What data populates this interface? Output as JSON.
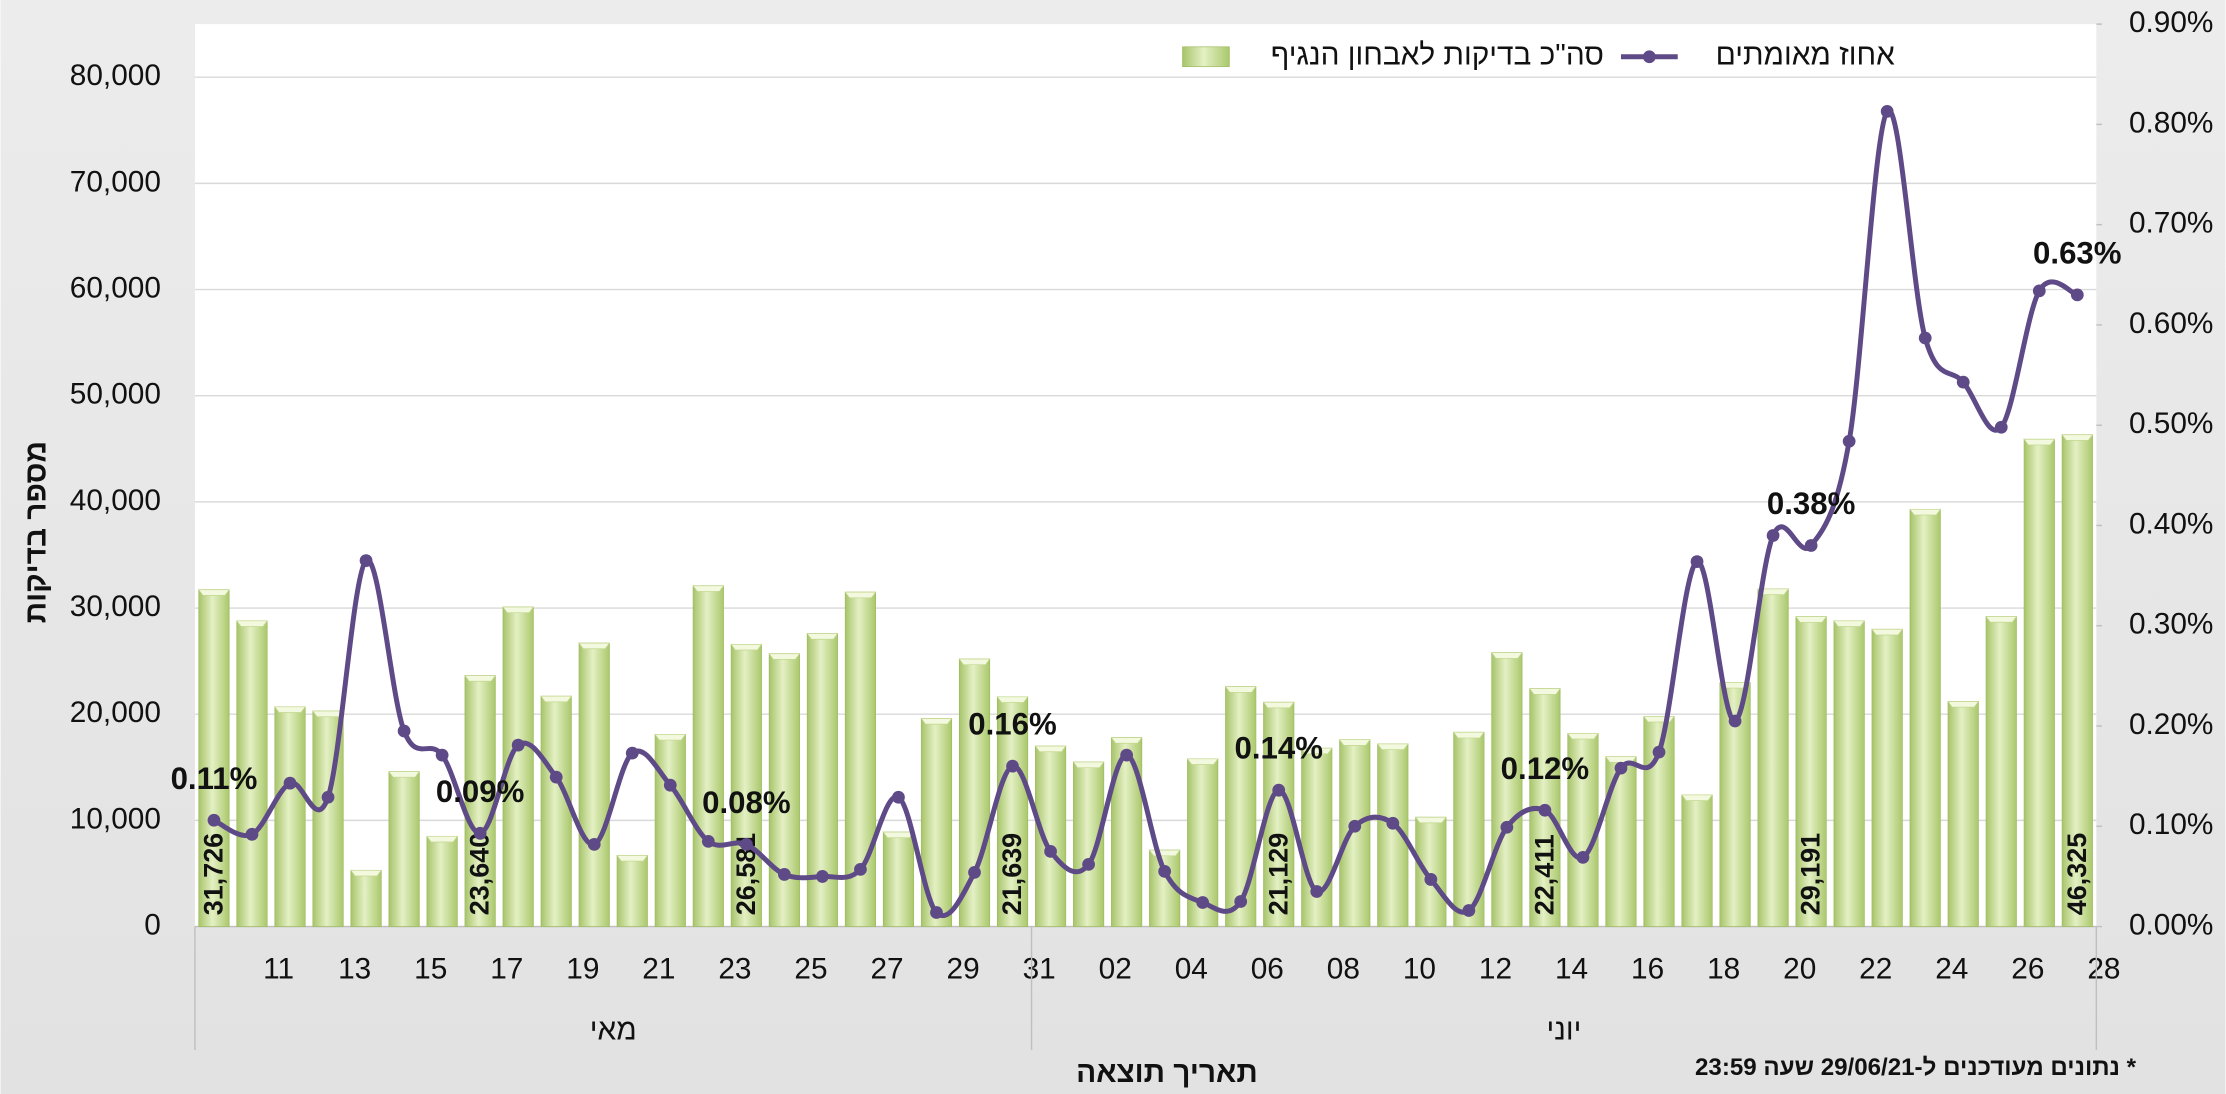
{
  "chart_data": {
    "type": "bar_line",
    "x_title": "תאריך תוצאה",
    "y_title": "מספר בדיקות",
    "footnote": "* נתונים מעודכנים ל-29/06/21 שעה 23:59",
    "categories": [
      null,
      "11",
      null,
      "13",
      null,
      "15",
      null,
      "17",
      null,
      "19",
      null,
      "21",
      null,
      "23",
      null,
      "25",
      null,
      "27",
      null,
      "29",
      null,
      "31",
      null,
      "02",
      null,
      "04",
      null,
      "06",
      null,
      "08",
      null,
      "10",
      null,
      "12",
      null,
      "14",
      null,
      "16",
      null,
      "18",
      null,
      "20",
      null,
      "22",
      null,
      "24",
      null,
      "26",
      null,
      "28"
    ],
    "groups": [
      {
        "label": "מאי",
        "count": 22
      },
      {
        "label": "יוני",
        "count": 28
      }
    ],
    "ylim": [
      0,
      85000
    ],
    "yticks": [
      0,
      {
        "value": 10000,
        "label": "10,000"
      },
      {
        "value": 20000,
        "label": "20,000"
      },
      {
        "value": 30000,
        "label": "30,000"
      },
      {
        "value": 40000,
        "label": "40,000"
      },
      {
        "value": 50000,
        "label": "50,000"
      },
      {
        "value": 60000,
        "label": "60,000"
      },
      {
        "value": 70000,
        "label": "70,000"
      },
      {
        "value": 80000,
        "label": "80,000"
      }
    ],
    "y2lim": [
      0,
      0.9
    ],
    "y2ticks": [
      {
        "value": 0,
        "label": "0.00%"
      },
      {
        "value": 0.1,
        "label": "0.10%"
      },
      {
        "value": 0.2,
        "label": "0.20%"
      },
      {
        "value": 0.3,
        "label": "0.30%"
      },
      {
        "value": 0.4,
        "label": "0.40%"
      },
      {
        "value": 0.5,
        "label": "0.50%"
      },
      {
        "value": 0.6,
        "label": "0.60%"
      },
      {
        "value": 0.7,
        "label": "0.70%"
      },
      {
        "value": 0.8,
        "label": "0.80%"
      },
      {
        "value": 0.9,
        "label": "0.90%"
      }
    ],
    "grid": true,
    "legend": "top",
    "series": [
      {
        "name": "סה\"כ בדיקות לאבחון הנגיף",
        "type": "bar",
        "color": "#b9d47e",
        "values": [
          31726,
          28800,
          20700,
          20300,
          5300,
          14600,
          8500,
          23640,
          30100,
          21700,
          26700,
          6700,
          18100,
          32100,
          26581,
          25700,
          27600,
          31500,
          8900,
          19600,
          25200,
          21639,
          17000,
          15500,
          17800,
          7200,
          15800,
          22600,
          21129,
          16800,
          17600,
          17200,
          10300,
          18300,
          25800,
          22411,
          18200,
          16000,
          19800,
          12400,
          23000,
          31800,
          29191,
          28800,
          28000,
          39300,
          21200,
          29200,
          45900,
          46325
        ],
        "value_labels": [
          "31,726",
          null,
          null,
          null,
          null,
          null,
          null,
          "23,640",
          null,
          null,
          null,
          null,
          null,
          null,
          "26,581",
          null,
          null,
          null,
          null,
          null,
          null,
          "21,639",
          null,
          null,
          null,
          null,
          null,
          null,
          "21,129",
          null,
          null,
          null,
          null,
          null,
          null,
          "22,411",
          null,
          null,
          null,
          null,
          null,
          null,
          "29,191",
          null,
          null,
          null,
          null,
          null,
          null,
          "46,325"
        ]
      },
      {
        "name": "אחוז מאומתים",
        "type": "line",
        "axis": "y2",
        "color": "#5e4a86",
        "values": [
          0.106,
          0.092,
          0.143,
          0.129,
          0.365,
          0.195,
          0.171,
          0.093,
          0.181,
          0.149,
          0.082,
          0.173,
          0.141,
          0.085,
          0.082,
          0.052,
          0.05,
          0.057,
          0.129,
          0.014,
          0.054,
          0.16,
          0.075,
          0.062,
          0.171,
          0.055,
          0.024,
          0.025,
          0.136,
          0.035,
          0.1,
          0.103,
          0.047,
          0.016,
          0.099,
          0.116,
          0.069,
          0.158,
          0.174,
          0.364,
          0.205,
          0.39,
          0.38,
          0.484,
          0.813,
          0.587,
          0.543,
          0.498,
          0.634,
          0.63
        ],
        "value_labels": [
          "0.11%",
          null,
          null,
          null,
          null,
          null,
          null,
          "0.09%",
          null,
          null,
          null,
          null,
          null,
          null,
          "0.08%",
          null,
          null,
          null,
          null,
          null,
          null,
          "0.16%",
          null,
          null,
          null,
          null,
          null,
          null,
          "0.14%",
          null,
          null,
          null,
          null,
          null,
          null,
          "0.12%",
          null,
          null,
          null,
          null,
          null,
          null,
          "0.38%",
          null,
          null,
          null,
          null,
          null,
          null,
          "0.63%"
        ]
      }
    ]
  }
}
